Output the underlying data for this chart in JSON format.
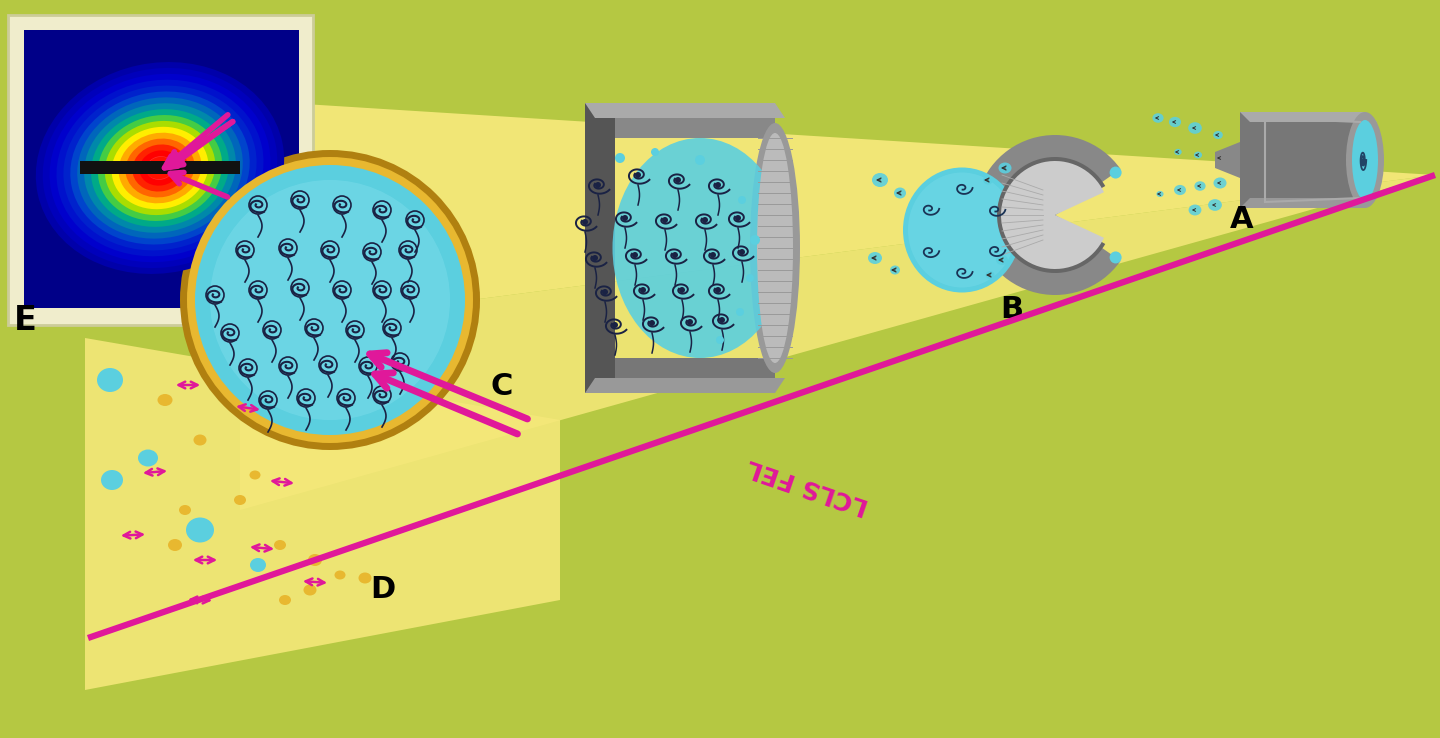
{
  "bg_color": "#b5c842",
  "beam_color": "#f5e87a",
  "label_A": "A",
  "label_B": "B",
  "label_C": "C",
  "label_D": "D",
  "label_E": "E",
  "lcls_label": "LCLS FEL",
  "pink_color": "#e0189a",
  "cyan_color": "#5bcfdf",
  "cyan_light": "#85e0ee",
  "cyan_dark": "#3ab0c5",
  "gold_color": "#e8b830",
  "dark_gold": "#b08010",
  "gray_dark": "#555555",
  "gray_mid": "#888888",
  "gray_light": "#bbbbbb",
  "diffraction_bg": "#000088",
  "frame_color": "#f0edcc",
  "label_fontsize": 20
}
